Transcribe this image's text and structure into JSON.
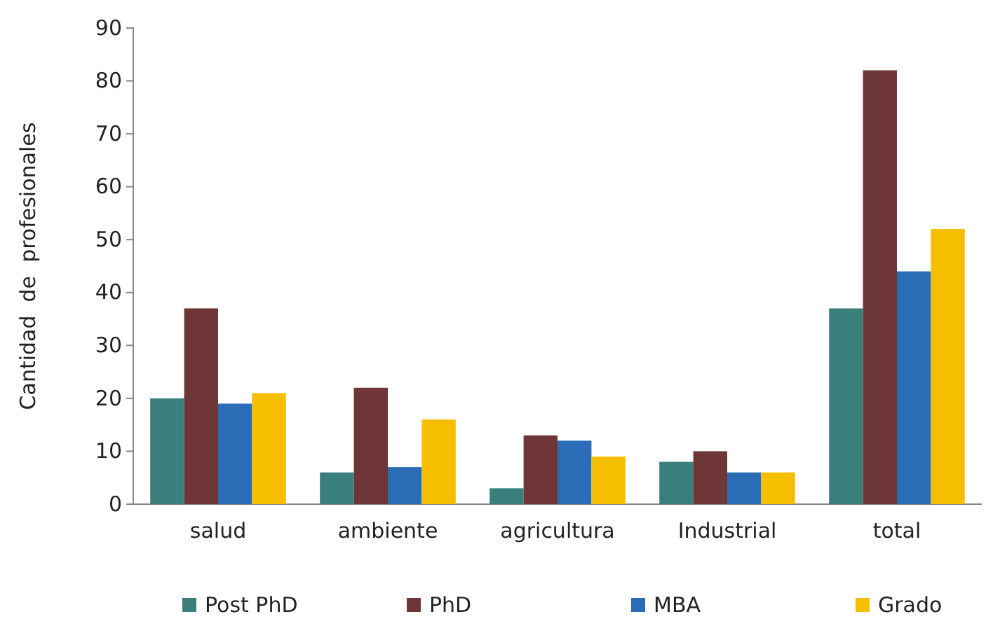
{
  "chart_data": {
    "type": "bar",
    "ylabel": "Cantidad  de  profesionales",
    "categories": [
      "salud",
      "ambiente",
      "agricultura",
      "Industrial",
      "total"
    ],
    "series": [
      {
        "name": "Post PhD",
        "color": "#3b7f7d",
        "values": [
          20,
          6,
          3,
          8,
          37
        ]
      },
      {
        "name": "PhD",
        "color": "#6e3636",
        "values": [
          37,
          22,
          13,
          10,
          82
        ]
      },
      {
        "name": "MBA",
        "color": "#2a6db6",
        "values": [
          19,
          7,
          12,
          6,
          44
        ]
      },
      {
        "name": "Grado",
        "color": "#f5bf00",
        "values": [
          21,
          16,
          9,
          6,
          52
        ]
      }
    ],
    "ylim": [
      0,
      90
    ],
    "yticks": [
      0,
      10,
      20,
      30,
      40,
      50,
      60,
      70,
      80,
      90
    ],
    "grid": false,
    "legend": "bottom"
  }
}
